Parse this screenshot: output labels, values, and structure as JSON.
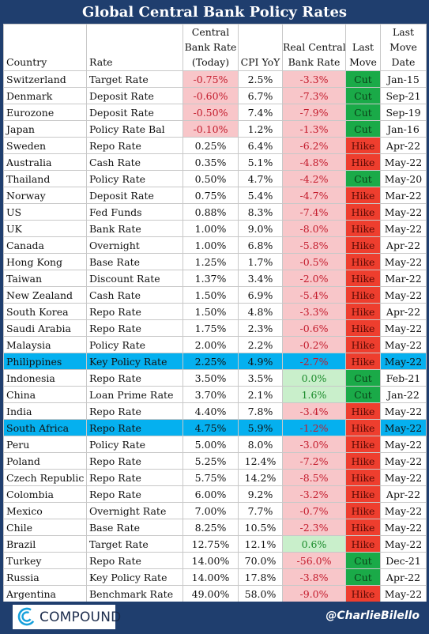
{
  "title": "Global Central Bank Policy Rates",
  "chart_data": {
    "type": "table",
    "title": "Global Central Bank Policy Rates",
    "columns": [
      "Country",
      "Rate",
      "Central Bank Rate (Today)",
      "CPI YoY",
      "Real Central Bank Rate",
      "Last Move",
      "Last Move Date"
    ],
    "header_lines": [
      [
        "Country"
      ],
      [
        "Rate"
      ],
      [
        "Central",
        "Bank Rate",
        "(Today)"
      ],
      [
        "CPI YoY"
      ],
      [
        "Real Central",
        "Bank Rate"
      ],
      [
        "Last",
        "Move"
      ],
      [
        "Last",
        "Move",
        "Date"
      ]
    ],
    "rows": [
      {
        "country": "Switzerland",
        "rate": "Target Rate",
        "cb_rate": "-0.75%",
        "cpi": "2.5%",
        "real": "-3.3%",
        "move": "Cut",
        "date": "Jan-15"
      },
      {
        "country": "Denmark",
        "rate": "Deposit Rate",
        "cb_rate": "-0.60%",
        "cpi": "6.7%",
        "real": "-7.3%",
        "move": "Cut",
        "date": "Sep-21"
      },
      {
        "country": "Eurozone",
        "rate": "Deposit Rate",
        "cb_rate": "-0.50%",
        "cpi": "7.4%",
        "real": "-7.9%",
        "move": "Cut",
        "date": "Sep-19"
      },
      {
        "country": "Japan",
        "rate": "Policy Rate Bal",
        "cb_rate": "-0.10%",
        "cpi": "1.2%",
        "real": "-1.3%",
        "move": "Cut",
        "date": "Jan-16"
      },
      {
        "country": "Sweden",
        "rate": "Repo Rate",
        "cb_rate": "0.25%",
        "cpi": "6.4%",
        "real": "-6.2%",
        "move": "Hike",
        "date": "Apr-22"
      },
      {
        "country": "Australia",
        "rate": "Cash Rate",
        "cb_rate": "0.35%",
        "cpi": "5.1%",
        "real": "-4.8%",
        "move": "Hike",
        "date": "May-22"
      },
      {
        "country": "Thailand",
        "rate": "Policy Rate",
        "cb_rate": "0.50%",
        "cpi": "4.7%",
        "real": "-4.2%",
        "move": "Cut",
        "date": "May-20"
      },
      {
        "country": "Norway",
        "rate": "Deposit Rate",
        "cb_rate": "0.75%",
        "cpi": "5.4%",
        "real": "-4.7%",
        "move": "Hike",
        "date": "Mar-22"
      },
      {
        "country": "US",
        "rate": "Fed Funds",
        "cb_rate": "0.88%",
        "cpi": "8.3%",
        "real": "-7.4%",
        "move": "Hike",
        "date": "May-22"
      },
      {
        "country": "UK",
        "rate": "Bank Rate",
        "cb_rate": "1.00%",
        "cpi": "9.0%",
        "real": "-8.0%",
        "move": "Hike",
        "date": "May-22"
      },
      {
        "country": "Canada",
        "rate": "Overnight",
        "cb_rate": "1.00%",
        "cpi": "6.8%",
        "real": "-5.8%",
        "move": "Hike",
        "date": "Apr-22"
      },
      {
        "country": "Hong Kong",
        "rate": "Base Rate",
        "cb_rate": "1.25%",
        "cpi": "1.7%",
        "real": "-0.5%",
        "move": "Hike",
        "date": "May-22"
      },
      {
        "country": "Taiwan",
        "rate": "Discount Rate",
        "cb_rate": "1.37%",
        "cpi": "3.4%",
        "real": "-2.0%",
        "move": "Hike",
        "date": "Mar-22"
      },
      {
        "country": "New Zealand",
        "rate": "Cash Rate",
        "cb_rate": "1.50%",
        "cpi": "6.9%",
        "real": "-5.4%",
        "move": "Hike",
        "date": "May-22"
      },
      {
        "country": "South Korea",
        "rate": "Repo Rate",
        "cb_rate": "1.50%",
        "cpi": "4.8%",
        "real": "-3.3%",
        "move": "Hike",
        "date": "Apr-22"
      },
      {
        "country": "Saudi Arabia",
        "rate": "Repo Rate",
        "cb_rate": "1.75%",
        "cpi": "2.3%",
        "real": "-0.6%",
        "move": "Hike",
        "date": "May-22"
      },
      {
        "country": "Malaysia",
        "rate": "Policy Rate",
        "cb_rate": "2.00%",
        "cpi": "2.2%",
        "real": "-0.2%",
        "move": "Hike",
        "date": "May-22"
      },
      {
        "country": "Philippines",
        "rate": "Key Policy Rate",
        "cb_rate": "2.25%",
        "cpi": "4.9%",
        "real": "-2.7%",
        "move": "Hike",
        "date": "May-22",
        "highlight": true
      },
      {
        "country": "Indonesia",
        "rate": "Repo Rate",
        "cb_rate": "3.50%",
        "cpi": "3.5%",
        "real": "0.0%",
        "move": "Cut",
        "date": "Feb-21"
      },
      {
        "country": "China",
        "rate": "Loan Prime Rate",
        "cb_rate": "3.70%",
        "cpi": "2.1%",
        "real": "1.6%",
        "move": "Cut",
        "date": "Jan-22"
      },
      {
        "country": "India",
        "rate": "Repo Rate",
        "cb_rate": "4.40%",
        "cpi": "7.8%",
        "real": "-3.4%",
        "move": "Hike",
        "date": "May-22"
      },
      {
        "country": "South Africa",
        "rate": "Repo Rate",
        "cb_rate": "4.75%",
        "cpi": "5.9%",
        "real": "-1.2%",
        "move": "Hike",
        "date": "May-22",
        "highlight": true
      },
      {
        "country": "Peru",
        "rate": "Policy Rate",
        "cb_rate": "5.00%",
        "cpi": "8.0%",
        "real": "-3.0%",
        "move": "Hike",
        "date": "May-22"
      },
      {
        "country": "Poland",
        "rate": "Repo Rate",
        "cb_rate": "5.25%",
        "cpi": "12.4%",
        "real": "-7.2%",
        "move": "Hike",
        "date": "May-22"
      },
      {
        "country": "Czech Republic",
        "rate": "Repo Rate",
        "cb_rate": "5.75%",
        "cpi": "14.2%",
        "real": "-8.5%",
        "move": "Hike",
        "date": "May-22"
      },
      {
        "country": "Colombia",
        "rate": "Repo Rate",
        "cb_rate": "6.00%",
        "cpi": "9.2%",
        "real": "-3.2%",
        "move": "Hike",
        "date": "Apr-22"
      },
      {
        "country": "Mexico",
        "rate": "Overnight Rate",
        "cb_rate": "7.00%",
        "cpi": "7.7%",
        "real": "-0.7%",
        "move": "Hike",
        "date": "May-22"
      },
      {
        "country": "Chile",
        "rate": "Base Rate",
        "cb_rate": "8.25%",
        "cpi": "10.5%",
        "real": "-2.3%",
        "move": "Hike",
        "date": "May-22"
      },
      {
        "country": "Brazil",
        "rate": "Target Rate",
        "cb_rate": "12.75%",
        "cpi": "12.1%",
        "real": "0.6%",
        "move": "Hike",
        "date": "May-22"
      },
      {
        "country": "Turkey",
        "rate": "Repo Rate",
        "cb_rate": "14.00%",
        "cpi": "70.0%",
        "real": "-56.0%",
        "move": "Cut",
        "date": "Dec-21"
      },
      {
        "country": "Russia",
        "rate": "Key Policy Rate",
        "cb_rate": "14.00%",
        "cpi": "17.8%",
        "real": "-3.8%",
        "move": "Cut",
        "date": "Apr-22"
      },
      {
        "country": "Argentina",
        "rate": "Benchmark Rate",
        "cb_rate": "49.00%",
        "cpi": "58.0%",
        "real": "-9.0%",
        "move": "Hike",
        "date": "May-22"
      }
    ]
  },
  "colors": {
    "background": "#1f3e6e",
    "negative_fill": "#f8c6c9",
    "negative_text": "#c31b2c",
    "positive_fill": "#c9efcb",
    "positive_text": "#1a8a2a",
    "cut": "#1aaa48",
    "hike": "#ee3e2e",
    "highlight": "#05b0ef"
  },
  "footer": {
    "logo_icon": "compound-c-icon",
    "logo_text": "COMPOUND",
    "handle": "@CharlieBilello"
  }
}
